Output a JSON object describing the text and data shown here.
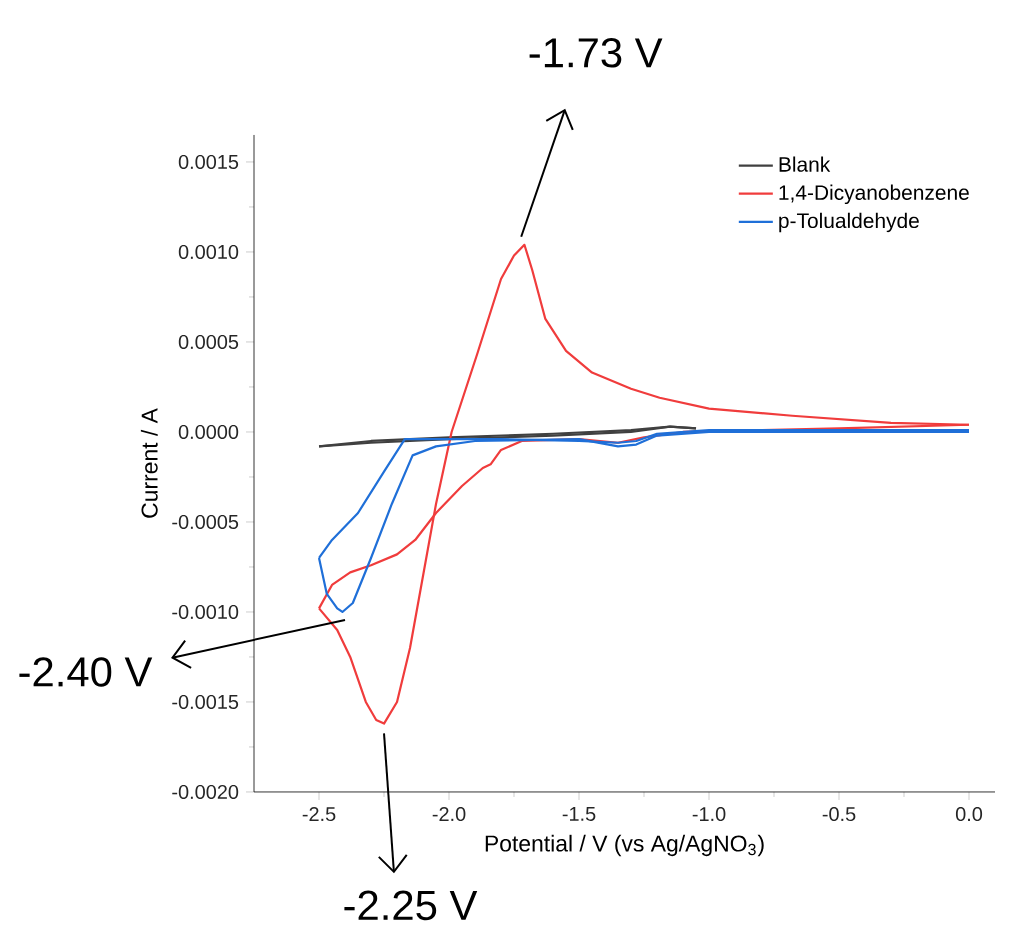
{
  "chart_data": {
    "type": "line",
    "xlabel": "Potential / V (vs Ag/AgNO$_{3}$)",
    "ylabel": "Current / A",
    "xlim": [
      -2.75,
      0.1
    ],
    "ylim": [
      -0.002,
      0.00165
    ],
    "xticks": [
      {
        "value": -2.5,
        "label": "-2.5"
      },
      {
        "value": -2.0,
        "label": "-2.0"
      },
      {
        "value": -1.5,
        "label": "-1.5"
      },
      {
        "value": -1.0,
        "label": "-1.0"
      },
      {
        "value": -0.5,
        "label": "-0.5"
      },
      {
        "value": 0.0,
        "label": "0.0"
      }
    ],
    "yticks": [
      {
        "value": -0.002,
        "label": "-0.0020"
      },
      {
        "value": -0.0015,
        "label": "-0.0015"
      },
      {
        "value": -0.001,
        "label": "-0.0010"
      },
      {
        "value": -0.0005,
        "label": "-0.0005"
      },
      {
        "value": 0.0,
        "label": "0.0000"
      },
      {
        "value": 0.0005,
        "label": "0.0005"
      },
      {
        "value": 0.001,
        "label": "0.0010"
      },
      {
        "value": 0.0015,
        "label": "0.0015"
      }
    ],
    "legend": "top right",
    "series": [
      {
        "name": "Blank",
        "color": "#404040",
        "x": [
          -1.05,
          -1.15,
          -1.3,
          -1.6,
          -2.0,
          -2.3,
          -2.5
        ],
        "values": [
          2e-05,
          3e-05,
          0.0,
          -2e-05,
          -4e-05,
          -6e-05,
          -8e-05
        ]
      },
      {
        "color": "#404040",
        "x": [
          -2.5,
          -2.3,
          -2.0,
          -1.6,
          -1.3,
          -1.15,
          -1.05
        ],
        "values": [
          -8e-05,
          -5e-05,
          -3e-05,
          -1e-05,
          1e-05,
          3e-05,
          2e-05
        ]
      },
      {
        "name": "1,4-Dicyanobenzene",
        "color": "#f03c3c",
        "x": [
          0.0,
          -0.3,
          -0.68,
          -1.0,
          -1.19,
          -1.3,
          -1.45,
          -1.55,
          -1.63,
          -1.68,
          -1.71,
          -1.75,
          -1.8,
          -1.89,
          -1.99,
          -2.05,
          -2.1,
          -2.15,
          -2.2,
          -2.25,
          -2.28,
          -2.32,
          -2.38,
          -2.43,
          -2.5
        ],
        "values": [
          4e-05,
          5e-05,
          9e-05,
          0.00013,
          0.00019,
          0.00024,
          0.00033,
          0.00045,
          0.00063,
          0.0009,
          0.00104,
          0.00098,
          0.00085,
          0.00044,
          0.0,
          -0.0004,
          -0.0008,
          -0.0012,
          -0.0015,
          -0.00162,
          -0.0016,
          -0.0015,
          -0.00125,
          -0.0011,
          -0.00098
        ]
      },
      {
        "color": "#f03c3c",
        "x": [
          -2.5,
          -2.45,
          -2.38,
          -2.3,
          -2.2,
          -2.13,
          -2.05,
          -1.95,
          -1.87,
          -1.84,
          -1.8,
          -1.72,
          -1.5,
          -1.35,
          -1.25,
          -1.1,
          -0.5,
          0.0
        ],
        "values": [
          -0.00098,
          -0.00085,
          -0.00078,
          -0.00074,
          -0.00068,
          -0.0006,
          -0.00045,
          -0.0003,
          -0.0002,
          -0.00018,
          -0.0001,
          -5e-05,
          -4e-05,
          -6e-05,
          -3e-05,
          0.0,
          2e-05,
          4e-05
        ]
      },
      {
        "name": "p-Tolualdehyde",
        "color": "#1f6fd8",
        "x": [
          0.0,
          -1.0,
          -1.2,
          -1.28,
          -1.35,
          -1.5,
          -1.8,
          -2.0,
          -2.17,
          -2.25,
          -2.35,
          -2.45,
          -2.5
        ],
        "values": [
          1e-05,
          1e-05,
          -1e-05,
          -5e-05,
          -6e-05,
          -5e-05,
          -4e-05,
          -4e-05,
          -4e-05,
          -0.00022,
          -0.00045,
          -0.0006,
          -0.0007
        ]
      },
      {
        "color": "#1f6fd8",
        "x": [
          -2.5,
          -2.47,
          -2.43,
          -2.41,
          -2.37,
          -2.3,
          -2.22,
          -2.14,
          -2.05,
          -1.9,
          -1.5,
          -1.35,
          -1.28,
          -1.2,
          -1.0,
          0.0
        ],
        "values": [
          -0.0007,
          -0.0009,
          -0.00098,
          -0.001,
          -0.00095,
          -0.0007,
          -0.0004,
          -0.00013,
          -8e-05,
          -5e-05,
          -4e-05,
          -8e-05,
          -7e-05,
          -2e-05,
          0.0,
          0.0
        ]
      }
    ],
    "annotations": [
      {
        "text": "-1.73 V",
        "x": -1.73,
        "y": 0.00104
      },
      {
        "text": "-2.40 V",
        "x": -2.4,
        "y": -0.001
      },
      {
        "text": "-2.25 V",
        "x": -2.25,
        "y": -0.00163
      }
    ]
  }
}
